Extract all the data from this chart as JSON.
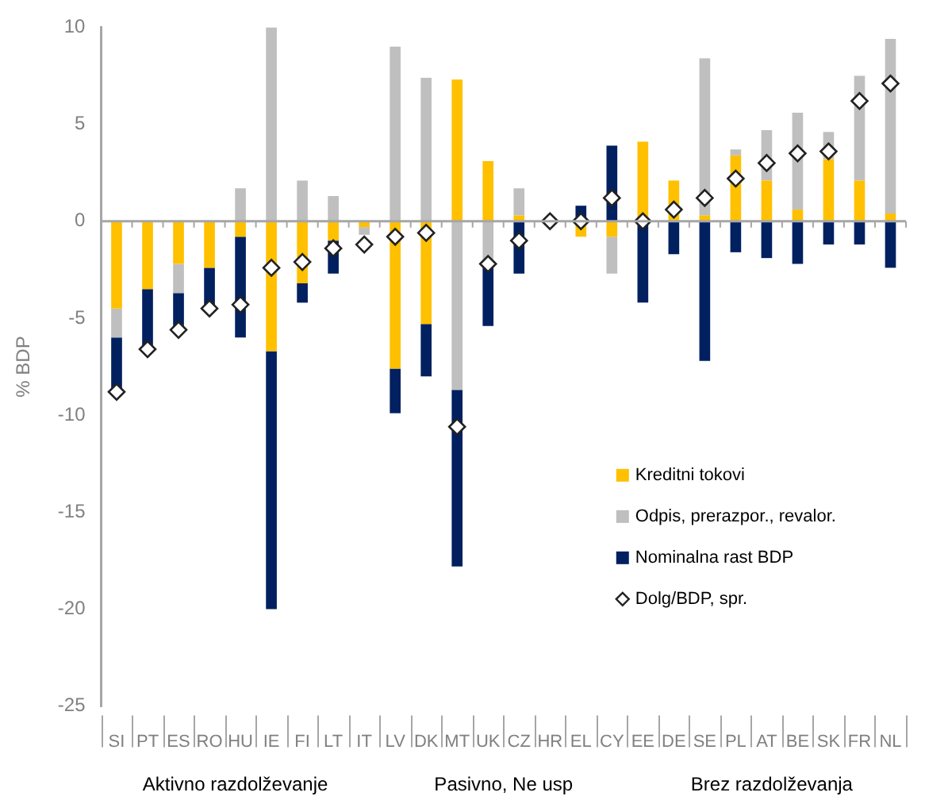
{
  "chart_data": {
    "type": "bar",
    "stacked": true,
    "ylabel": "% BDP",
    "categories": [
      "SI",
      "PT",
      "ES",
      "RO",
      "HU",
      "IE",
      "FI",
      "LT",
      "IT",
      "LV",
      "DK",
      "MT",
      "UK",
      "CZ",
      "HR",
      "EL",
      "CY",
      "EE",
      "DE",
      "SE",
      "PL",
      "AT",
      "BE",
      "SK",
      "FR",
      "NL"
    ],
    "series": [
      {
        "name": "Kreditni tokovi",
        "color": "#ffc000",
        "values": [
          -4.5,
          -3.5,
          -2.2,
          -2.4,
          -0.8,
          -6.7,
          -3.2,
          -1.0,
          -0.3,
          -7.6,
          -5.3,
          7.3,
          3.1,
          0.3,
          null,
          -0.8,
          -0.8,
          4.1,
          2.1,
          0.3,
          3.4,
          2.1,
          0.6,
          3.2,
          2.1,
          0.4
        ]
      },
      {
        "name": "Odpis, prerazpor., revalor.",
        "color": "#bfbfbf",
        "values": [
          -1.5,
          null,
          -1.5,
          null,
          1.7,
          10,
          2.1,
          1.3,
          -0.4,
          9.0,
          7.4,
          -8.7,
          -2.3,
          1.4,
          null,
          null,
          -1.9,
          null,
          null,
          8.1,
          0.3,
          2.6,
          5.0,
          1.4,
          5.4,
          9.0
        ]
      },
      {
        "name": "Nominalna rast BDP",
        "color": "#002060",
        "values": [
          -2.8,
          -3.1,
          -1.9,
          -2.1,
          -5.2,
          -13.3,
          -1.0,
          -1.7,
          null,
          -2.3,
          -2.7,
          -9.1,
          -3.1,
          -2.7,
          null,
          0.8,
          3.9,
          -4.2,
          -1.7,
          -7.2,
          -1.6,
          -1.9,
          -2.2,
          -1.2,
          -1.2,
          -2.4
        ]
      },
      {
        "name": "Dolg/BDP, spr.",
        "type": "scatter",
        "marker": "diamond",
        "color": "#ffffff",
        "values": [
          -8.8,
          -6.6,
          -5.6,
          -4.5,
          -4.3,
          -2.4,
          -2.1,
          -1.4,
          -1.2,
          -0.8,
          -0.6,
          -10.6,
          -2.2,
          -1.0,
          0,
          0,
          1.2,
          0,
          0.6,
          1.2,
          2.2,
          3.0,
          3.5,
          3.6,
          6.2,
          7.1
        ]
      }
    ],
    "ylim": [
      -25,
      10
    ],
    "yticks": [
      -25,
      -20,
      -15,
      -10,
      -5,
      0,
      5,
      10
    ],
    "grid": false,
    "legend": "right",
    "ref_lines": [
      {
        "axis": "y",
        "value": 0,
        "color": "#a6a6a6"
      }
    ],
    "annotations": [
      "Aktivno razdolževanje",
      "Pasivno, Ne usp",
      "Brez razdolževanja"
    ]
  }
}
